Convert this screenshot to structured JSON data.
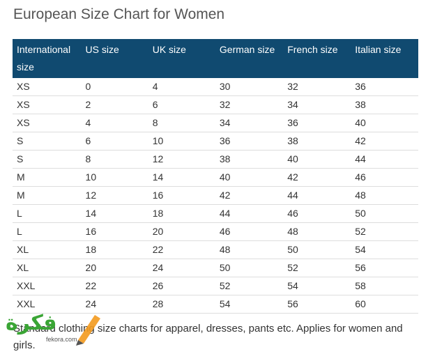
{
  "header": {
    "title": "European Size Chart for Women"
  },
  "table": {
    "columns": [
      "International size",
      "US size",
      "UK size",
      "German size",
      "French size",
      "Italian size"
    ],
    "rows": [
      [
        "XS",
        0,
        4,
        30,
        32,
        36
      ],
      [
        "XS",
        2,
        6,
        32,
        34,
        38
      ],
      [
        "XS",
        4,
        8,
        34,
        36,
        40
      ],
      [
        "S",
        6,
        10,
        36,
        38,
        42
      ],
      [
        "S",
        8,
        12,
        38,
        40,
        44
      ],
      [
        "M",
        10,
        14,
        40,
        42,
        46
      ],
      [
        "M",
        12,
        16,
        42,
        44,
        48
      ],
      [
        "L",
        14,
        18,
        44,
        46,
        50
      ],
      [
        "L",
        16,
        20,
        46,
        48,
        52
      ],
      [
        "XL",
        18,
        22,
        48,
        50,
        54
      ],
      [
        "XL",
        20,
        24,
        50,
        52,
        56
      ],
      [
        "XXL",
        22,
        26,
        52,
        54,
        58
      ],
      [
        "XXL",
        24,
        28,
        54,
        56,
        60
      ]
    ]
  },
  "footnote": "Standard clothing size charts for apparel, dresses, pants etc. Applies for women and girls.",
  "watermark": {
    "logo": "فكرة",
    "site": "fekora.com"
  }
}
